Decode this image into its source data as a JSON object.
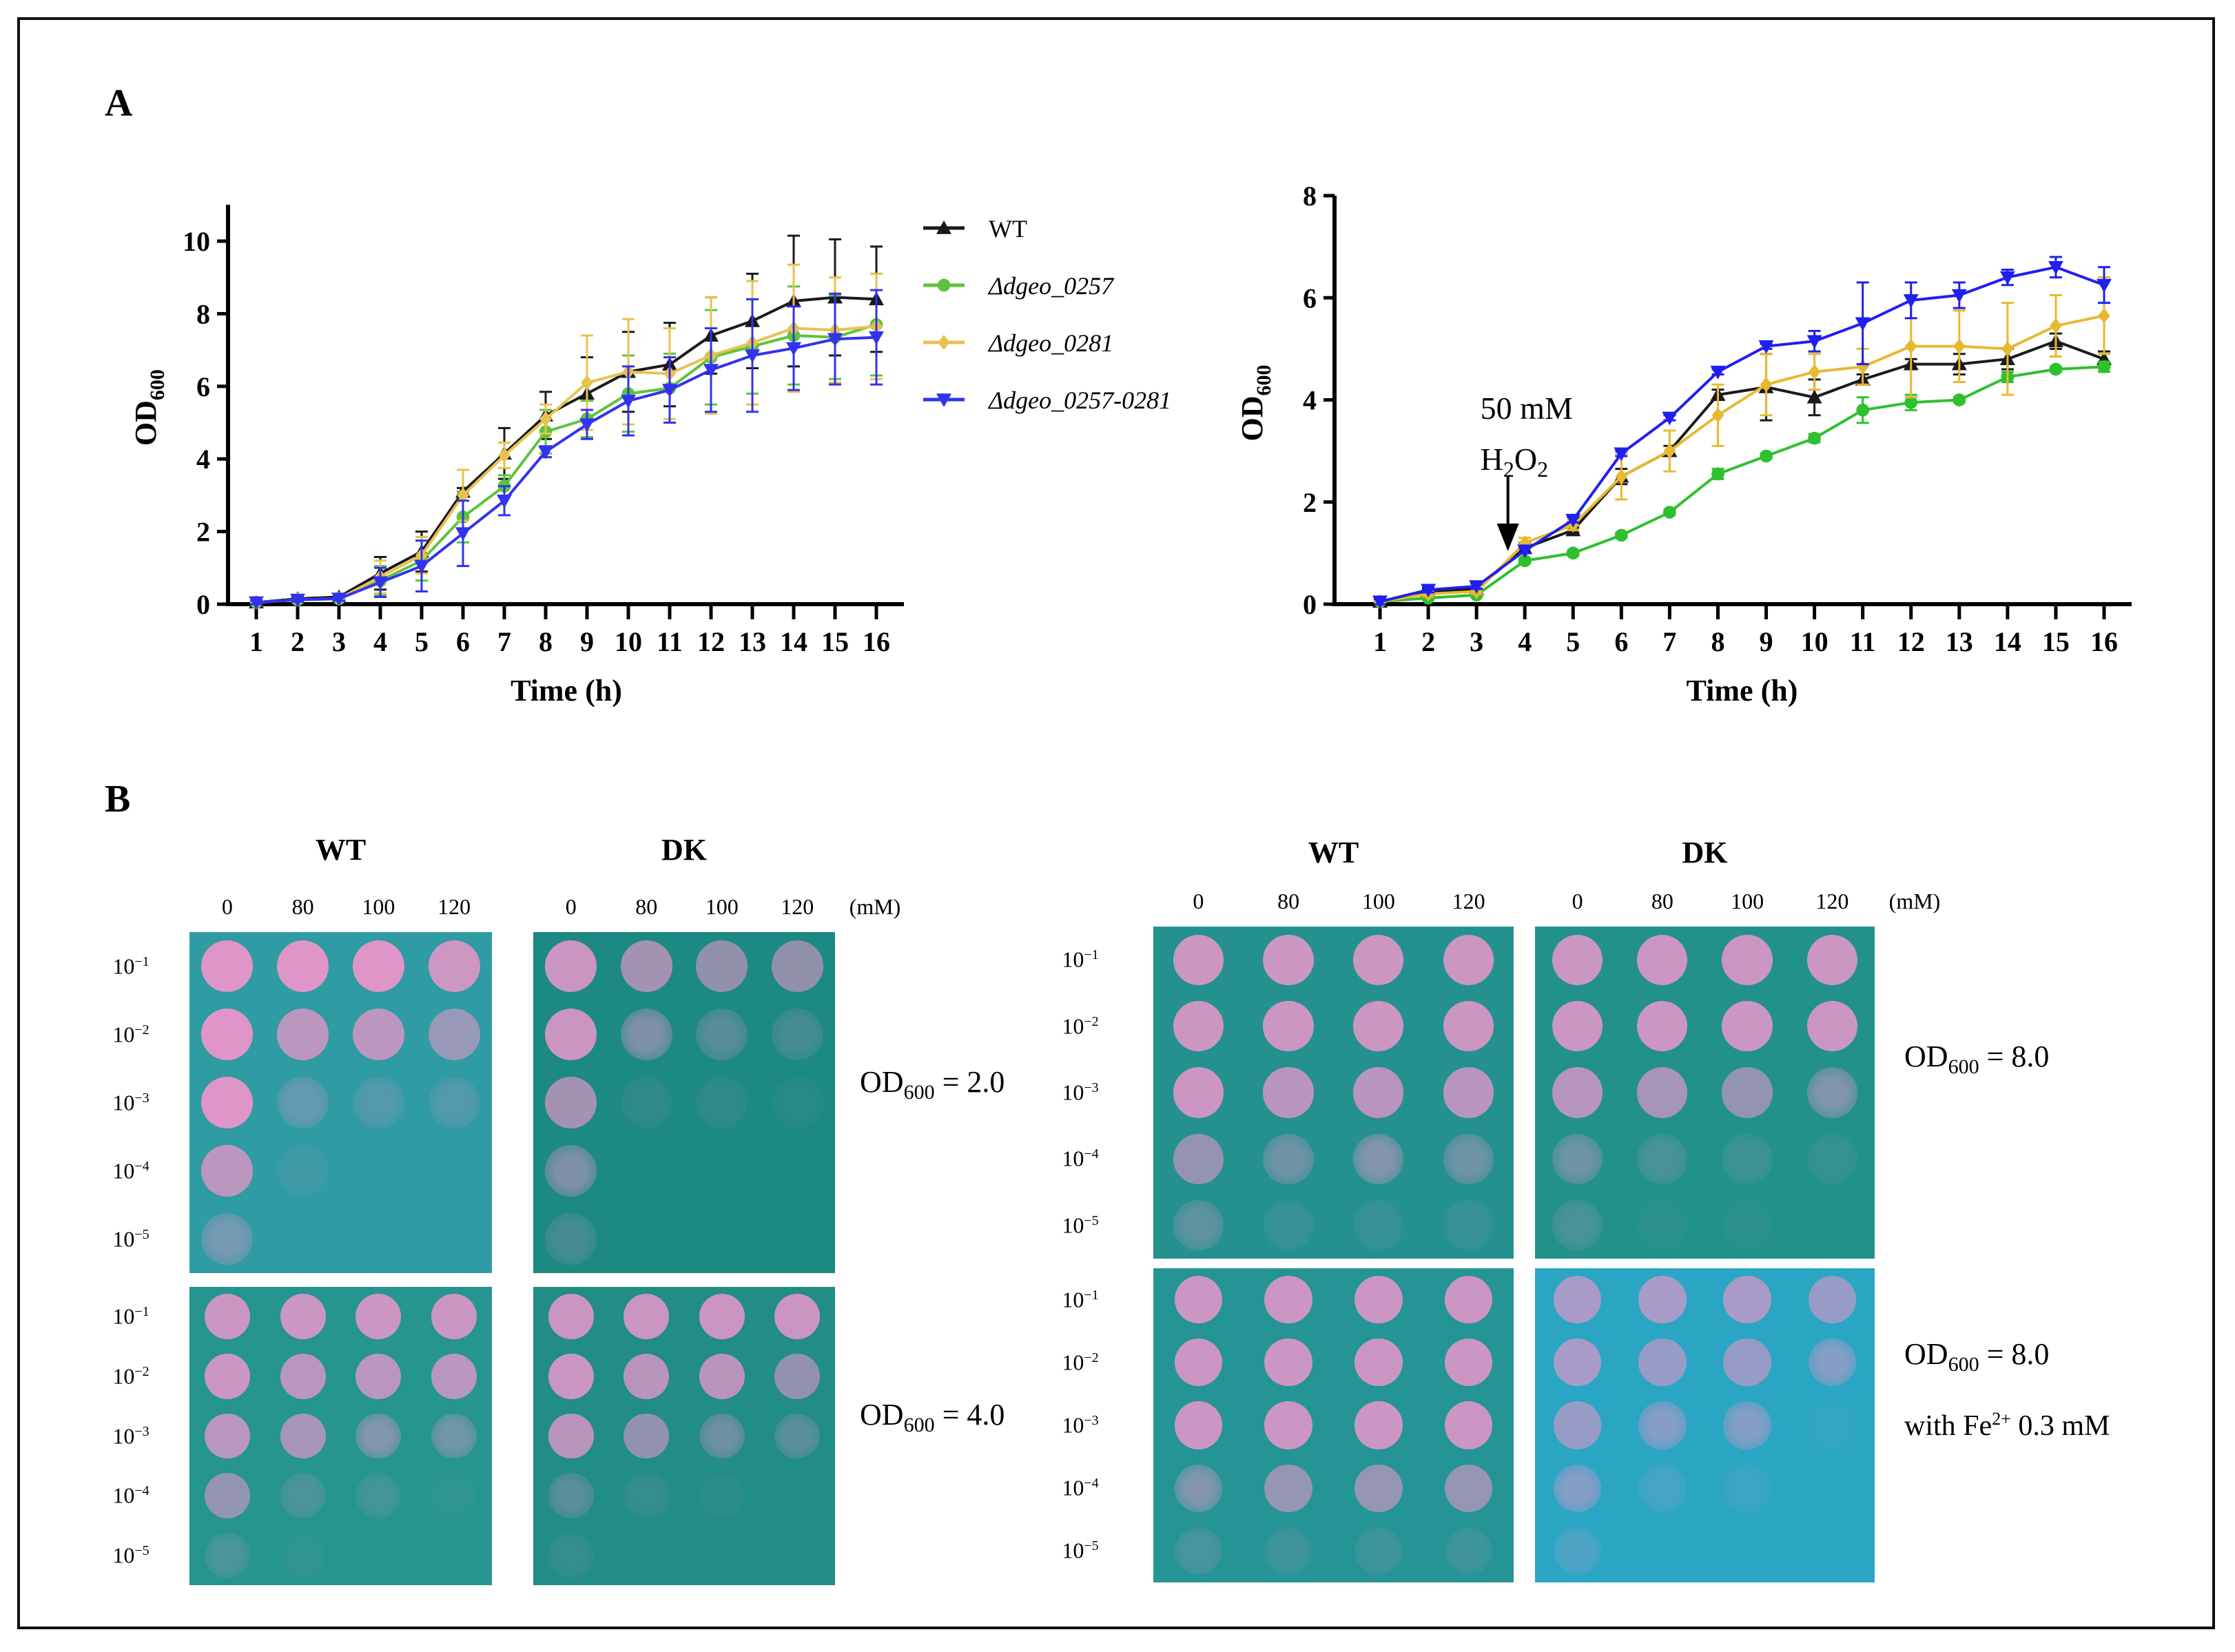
{
  "panel_labels": {
    "a": "A",
    "b": "B"
  },
  "chart_data": [
    {
      "type": "line",
      "title": "",
      "xlabel": "Time (h)",
      "ylabel": "OD",
      "ylabel_sub": "600",
      "x": [
        1,
        2,
        3,
        4,
        5,
        6,
        7,
        8,
        9,
        10,
        11,
        12,
        13,
        14,
        15,
        16
      ],
      "xlim": [
        1,
        16
      ],
      "ylim": [
        0,
        11
      ],
      "yticks": [
        0,
        2,
        4,
        6,
        8,
        10
      ],
      "grid": false,
      "legend_placement": "right",
      "series": [
        {
          "name": "WT",
          "color": "#1a1a1a",
          "marker": "triangle-up",
          "values": [
            0.05,
            0.15,
            0.2,
            0.85,
            1.45,
            3.1,
            4.15,
            5.2,
            5.8,
            6.4,
            6.6,
            7.4,
            7.8,
            8.35,
            8.45,
            8.4
          ],
          "error": [
            0.05,
            0.05,
            0.05,
            0.45,
            0.55,
            0.1,
            0.7,
            0.65,
            1.0,
            1.1,
            1.15,
            1.05,
            1.3,
            1.8,
            1.6,
            1.45
          ]
        },
        {
          "name": "Δdgeo_0257",
          "color": "#5cc43c",
          "marker": "circle",
          "values": [
            0.05,
            0.12,
            0.15,
            0.65,
            1.2,
            2.4,
            3.25,
            4.75,
            5.1,
            5.8,
            5.95,
            6.8,
            7.1,
            7.4,
            7.35,
            7.7
          ],
          "error": [
            0.05,
            0.05,
            0.05,
            0.4,
            0.55,
            0.7,
            0.3,
            0.6,
            0.5,
            1.05,
            0.95,
            1.3,
            1.3,
            1.35,
            1.15,
            1.4
          ]
        },
        {
          "name": "Δdgeo_0281",
          "color": "#e8c24e",
          "marker": "diamond",
          "values": [
            0.05,
            0.12,
            0.15,
            0.75,
            1.35,
            3.0,
            4.1,
            5.1,
            6.1,
            6.4,
            6.35,
            6.85,
            7.2,
            7.6,
            7.55,
            7.65
          ],
          "error": [
            0.05,
            0.05,
            0.05,
            0.45,
            0.5,
            0.7,
            0.35,
            0.4,
            1.3,
            1.45,
            1.25,
            1.6,
            1.7,
            1.75,
            1.45,
            1.45
          ]
        },
        {
          "name": "Δdgeo_0257-0281",
          "color": "#3232f0",
          "marker": "triangle-down",
          "values": [
            0.05,
            0.12,
            0.15,
            0.6,
            1.05,
            1.95,
            2.85,
            4.2,
            4.95,
            5.6,
            5.9,
            6.45,
            6.85,
            7.05,
            7.3,
            7.35
          ],
          "error": [
            0.05,
            0.05,
            0.05,
            0.4,
            0.7,
            0.9,
            0.4,
            0.15,
            0.4,
            0.95,
            0.9,
            1.15,
            1.55,
            1.15,
            1.25,
            1.3
          ]
        }
      ]
    },
    {
      "type": "line",
      "title": "",
      "xlabel": "Time (h)",
      "ylabel": "OD",
      "ylabel_sub": "600",
      "x": [
        1,
        2,
        3,
        4,
        5,
        6,
        7,
        8,
        9,
        10,
        11,
        12,
        13,
        14,
        15,
        16
      ],
      "xlim": [
        1,
        16
      ],
      "ylim": [
        0,
        8
      ],
      "yticks": [
        0,
        2,
        4,
        6,
        8
      ],
      "grid": false,
      "annotation": {
        "line1": "50 mM",
        "line2_base": "H",
        "line2_sub1": "2",
        "line2_mid": "O",
        "line2_sub2": "2",
        "arrow_at_x": 3.65
      },
      "series": [
        {
          "color": "#1a1a1a",
          "marker": "triangle-up",
          "values": [
            0.05,
            0.25,
            0.3,
            1.1,
            1.45,
            2.5,
            3.0,
            4.1,
            4.25,
            4.05,
            4.4,
            4.7,
            4.7,
            4.8,
            5.15,
            4.8
          ],
          "error": [
            0.05,
            0.05,
            0.05,
            0.1,
            0.05,
            0.15,
            0.1,
            0.1,
            0.65,
            0.35,
            0.1,
            0.1,
            0.2,
            0.2,
            0.15,
            0.15
          ]
        },
        {
          "color": "#2ec02e",
          "marker": "circle",
          "values": [
            0.05,
            0.12,
            0.18,
            0.85,
            1.0,
            1.35,
            1.8,
            2.55,
            2.9,
            3.25,
            3.8,
            3.95,
            4.0,
            4.45,
            4.6,
            4.65
          ],
          "error": [
            0.03,
            0.03,
            0.03,
            0.05,
            0.05,
            0.05,
            0.05,
            0.1,
            0.05,
            0.08,
            0.25,
            0.15,
            0.05,
            0.1,
            0.05,
            0.1
          ]
        },
        {
          "color": "#e8b830",
          "marker": "diamond",
          "values": [
            0.05,
            0.2,
            0.25,
            1.2,
            1.55,
            2.5,
            3.0,
            3.7,
            4.3,
            4.55,
            4.65,
            5.05,
            5.05,
            5.0,
            5.45,
            5.65
          ],
          "error": [
            0.03,
            0.05,
            0.05,
            0.1,
            0.1,
            0.45,
            0.4,
            0.6,
            0.6,
            0.35,
            0.35,
            1.0,
            0.7,
            0.9,
            0.6,
            0.75
          ]
        },
        {
          "color": "#1f1fef",
          "marker": "triangle-down",
          "values": [
            0.05,
            0.28,
            0.35,
            1.05,
            1.65,
            2.95,
            3.65,
            4.55,
            5.05,
            5.15,
            5.5,
            5.95,
            6.05,
            6.4,
            6.6,
            6.25
          ],
          "error": [
            0.05,
            0.05,
            0.05,
            0.05,
            0.05,
            0.05,
            0.05,
            0.05,
            0.05,
            0.2,
            0.8,
            0.35,
            0.25,
            0.15,
            0.2,
            0.35
          ]
        }
      ]
    }
  ],
  "spot_assays": {
    "strain_labels": [
      "WT",
      "DK"
    ],
    "concentrations": [
      "0",
      "80",
      "100",
      "120"
    ],
    "unit": "(mM)",
    "dilution_base": "10",
    "dilution_exponents": [
      "−1",
      "−2",
      "−3",
      "−4",
      "−5"
    ],
    "od_label": "OD",
    "od_sub": "600",
    "conditions": [
      {
        "od_value": "= 2.0"
      },
      {
        "od_value": "= 4.0"
      },
      {
        "od_value": "= 8.0"
      },
      {
        "od_value": "= 8.0",
        "note": "with Fe",
        "note_sup": "2+",
        "note_tail": " 0.3 mM"
      }
    ],
    "plates": [
      {
        "color": "#2f9ba2",
        "growth": [
          [
            1,
            1,
            1,
            0.9
          ],
          [
            1,
            0.8,
            0.8,
            0.6
          ],
          [
            1,
            0.3,
            0.2,
            0.2
          ],
          [
            0.8,
            0.1,
            0,
            0
          ],
          [
            0.4,
            0,
            0,
            0
          ]
        ]
      },
      {
        "color": "#1d8983",
        "growth": [
          [
            0.9,
            0.7,
            0.6,
            0.6
          ],
          [
            0.9,
            0.5,
            0.3,
            0.2
          ],
          [
            0.7,
            0.1,
            0.1,
            0.05
          ],
          [
            0.5,
            0,
            0,
            0
          ],
          [
            0.2,
            0,
            0,
            0
          ]
        ]
      },
      {
        "color": "#26958f",
        "growth": [
          [
            0.9,
            0.9,
            0.9,
            0.9
          ],
          [
            0.9,
            0.8,
            0.8,
            0.8
          ],
          [
            0.8,
            0.7,
            0.5,
            0.4
          ],
          [
            0.6,
            0.2,
            0.15,
            0.05
          ],
          [
            0.2,
            0.05,
            0,
            0
          ]
        ]
      },
      {
        "color": "#228c87",
        "growth": [
          [
            0.9,
            0.9,
            0.9,
            0.9
          ],
          [
            0.9,
            0.8,
            0.8,
            0.6
          ],
          [
            0.8,
            0.6,
            0.4,
            0.3
          ],
          [
            0.3,
            0.1,
            0.05,
            0
          ],
          [
            0.1,
            0,
            0,
            0
          ]
        ]
      },
      {
        "color": "#25918f",
        "growth": [
          [
            0.9,
            0.9,
            0.9,
            0.9
          ],
          [
            0.9,
            0.9,
            0.9,
            0.9
          ],
          [
            0.9,
            0.8,
            0.8,
            0.8
          ],
          [
            0.6,
            0.4,
            0.5,
            0.4
          ],
          [
            0.3,
            0.1,
            0.1,
            0.1
          ]
        ]
      },
      {
        "color": "#22918c",
        "growth": [
          [
            0.9,
            0.9,
            0.9,
            0.9
          ],
          [
            0.9,
            0.9,
            0.9,
            0.9
          ],
          [
            0.8,
            0.7,
            0.6,
            0.5
          ],
          [
            0.4,
            0.2,
            0.15,
            0.1
          ],
          [
            0.2,
            0.05,
            0.05,
            0
          ]
        ]
      },
      {
        "color": "#249594",
        "growth": [
          [
            0.9,
            0.9,
            0.9,
            0.9
          ],
          [
            0.9,
            0.9,
            0.9,
            0.9
          ],
          [
            0.9,
            0.9,
            0.9,
            0.9
          ],
          [
            0.5,
            0.6,
            0.6,
            0.6
          ],
          [
            0.2,
            0.15,
            0.15,
            0.15
          ]
        ]
      },
      {
        "color": "#2aa6c4",
        "growth": [
          [
            0.7,
            0.7,
            0.7,
            0.6
          ],
          [
            0.7,
            0.6,
            0.6,
            0.5
          ],
          [
            0.6,
            0.5,
            0.5,
            0.05
          ],
          [
            0.5,
            0.15,
            0.1,
            0
          ],
          [
            0.2,
            0,
            0,
            0
          ]
        ]
      }
    ]
  }
}
